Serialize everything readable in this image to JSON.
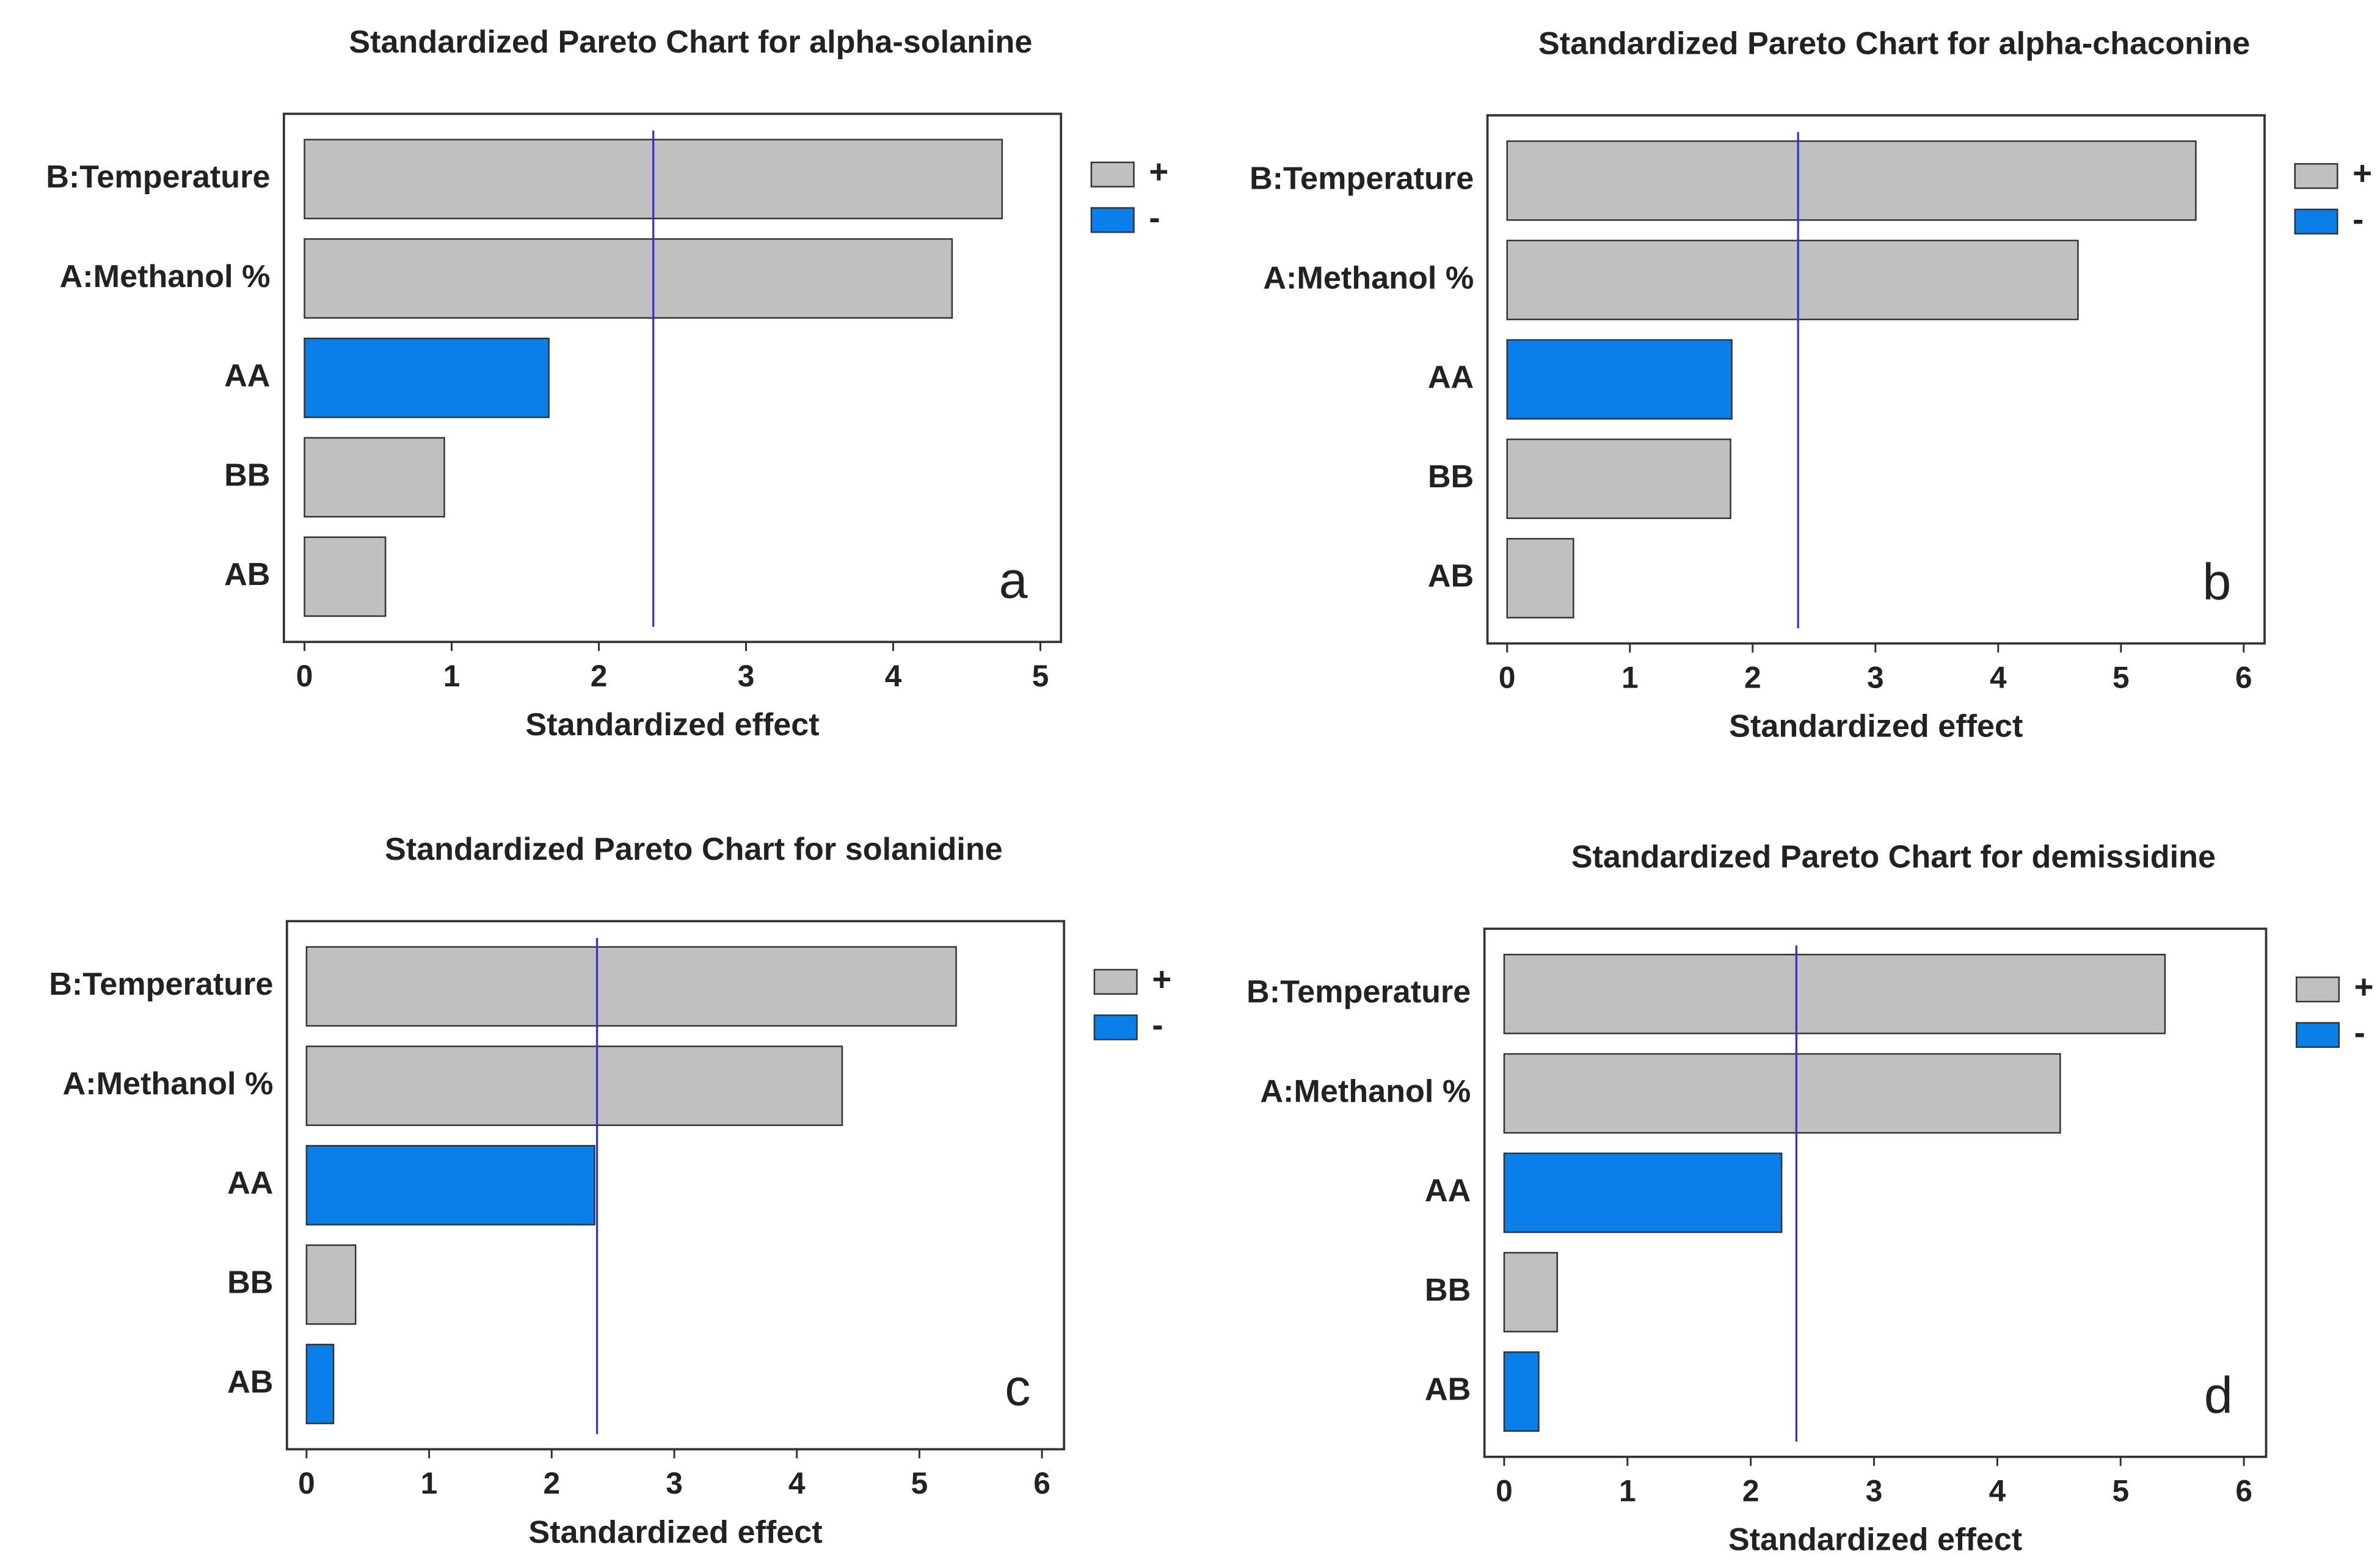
{
  "chart_data": [
    {
      "type": "bar",
      "orientation": "horizontal",
      "title": "Standardized Pareto Chart for alpha-solanine",
      "x_label": "Standardized effect",
      "panel_label": "a",
      "categories": [
        "B:Temperature",
        "A:Methanol %",
        "AA",
        "BB",
        "AB"
      ],
      "values": [
        4.74,
        4.4,
        1.66,
        0.95,
        0.55
      ],
      "bar_colors": [
        "#c0c0c0",
        "#c0c0c0",
        "#0a7fe8",
        "#c0c0c0",
        "#c0c0c0"
      ],
      "legend": [
        {
          "label": "+",
          "color": "#c0c0c0"
        },
        {
          "label": "-",
          "color": "#0a7fe8"
        }
      ],
      "reference_line": 2.37,
      "xlim": [
        -0.14,
        5.14
      ],
      "xticks": [
        0,
        1,
        2,
        3,
        4,
        5
      ]
    },
    {
      "type": "bar",
      "orientation": "horizontal",
      "title": "Standardized Pareto Chart for alpha-chaconine",
      "x_label": "Standardized effect",
      "panel_label": "b",
      "categories": [
        "B:Temperature",
        "A:Methanol %",
        "AA",
        "BB",
        "AB"
      ],
      "values": [
        5.61,
        4.65,
        1.83,
        1.82,
        0.54
      ],
      "bar_colors": [
        "#c0c0c0",
        "#c0c0c0",
        "#0a7fe8",
        "#c0c0c0",
        "#c0c0c0"
      ],
      "legend": [
        {
          "label": "+",
          "color": "#c0c0c0"
        },
        {
          "label": "-",
          "color": "#0a7fe8"
        }
      ],
      "reference_line": 2.37,
      "xlim": [
        -0.16,
        6.17
      ],
      "xticks": [
        0,
        1,
        2,
        3,
        4,
        5,
        6
      ]
    },
    {
      "type": "bar",
      "orientation": "horizontal",
      "title": "Standardized Pareto Chart for solanidine",
      "x_label": "Standardized effect",
      "panel_label": "c",
      "categories": [
        "B:Temperature",
        "A:Methanol %",
        "AA",
        "BB",
        "AB"
      ],
      "values": [
        5.3,
        4.37,
        2.35,
        0.4,
        0.22
      ],
      "bar_colors": [
        "#c0c0c0",
        "#c0c0c0",
        "#0a7fe8",
        "#c0c0c0",
        "#0a7fe8"
      ],
      "legend": [
        {
          "label": "+",
          "color": "#c0c0c0"
        },
        {
          "label": "-",
          "color": "#0a7fe8"
        }
      ],
      "reference_line": 2.37,
      "xlim": [
        -0.16,
        6.18
      ],
      "xticks": [
        0,
        1,
        2,
        3,
        4,
        5,
        6
      ]
    },
    {
      "type": "bar",
      "orientation": "horizontal",
      "title": "Standardized Pareto Chart for demissidine",
      "x_label": "Standardized effect",
      "panel_label": "d",
      "categories": [
        "B:Temperature",
        "A:Methanol %",
        "AA",
        "BB",
        "AB"
      ],
      "values": [
        5.36,
        4.51,
        2.25,
        0.43,
        0.28
      ],
      "bar_colors": [
        "#c0c0c0",
        "#c0c0c0",
        "#0a7fe8",
        "#c0c0c0",
        "#0a7fe8"
      ],
      "legend": [
        {
          "label": "+",
          "color": "#c0c0c0"
        },
        {
          "label": "-",
          "color": "#0a7fe8"
        }
      ],
      "reference_line": 2.37,
      "xlim": [
        -0.16,
        6.18
      ],
      "xticks": [
        0,
        1,
        2,
        3,
        4,
        5,
        6
      ]
    }
  ]
}
